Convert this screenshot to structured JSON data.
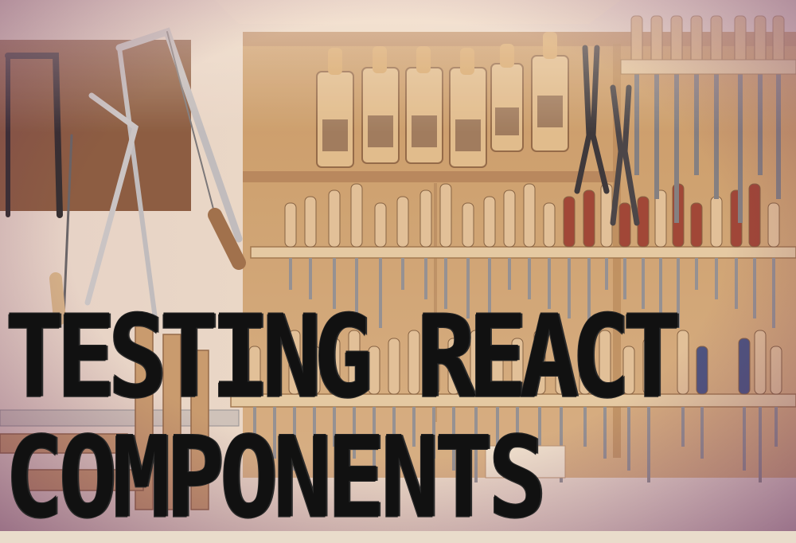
{
  "title_line_1": "TESTING REACT",
  "title_line_2": "COMPONENTS",
  "palette": {
    "wall": "#eadcc8",
    "board": "#b98c5e",
    "board_dark": "#8c6340",
    "plywood": "#c79c6a",
    "handle_light": "#e4c49a",
    "handle_red": "#9a3b2c",
    "metal": "#8e8f93",
    "vignette": "#6b2d5a",
    "text": "#111111"
  },
  "icons": [
    "hand-plane-icon",
    "chisel-icon",
    "screwdriver-icon",
    "saw-icon",
    "pliers-icon",
    "file-icon"
  ]
}
